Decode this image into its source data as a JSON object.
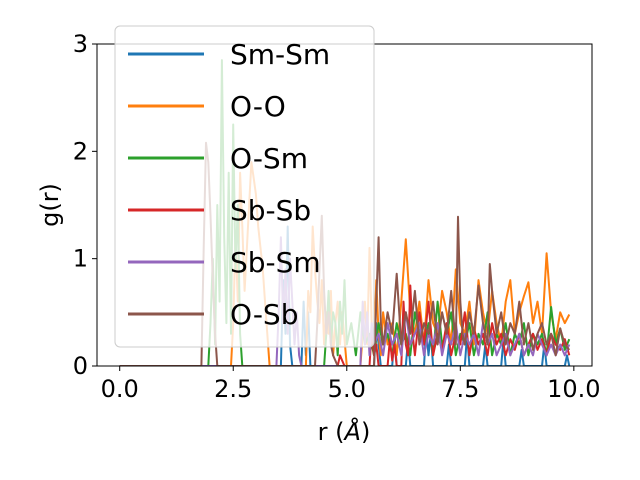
{
  "chart_data": {
    "type": "line",
    "title": "",
    "xlabel_text": "r (",
    "xlabel_unit": "Å",
    "xlabel_close": ")",
    "ylabel": "g(r)",
    "xlim": [
      -0.5,
      10.4
    ],
    "ylim": [
      0,
      3
    ],
    "xticks": [
      0.0,
      2.5,
      5.0,
      7.5,
      10.0
    ],
    "xtick_labels": [
      "0.0",
      "2.5",
      "5.0",
      "7.5",
      "10.0"
    ],
    "yticks": [
      0,
      1,
      2,
      3
    ],
    "ytick_labels": [
      "0",
      "1",
      "2",
      "3"
    ],
    "grid": false,
    "legend_position": "upper-left",
    "series": [
      {
        "name": "Sm-Sm",
        "color": "#1f77b4",
        "x": [
          0.0,
          3.55,
          3.6,
          3.65,
          3.7,
          3.75,
          3.8,
          4.0,
          4.05,
          4.1,
          4.15,
          4.2,
          5.6,
          5.65,
          5.7,
          5.75,
          6.0,
          6.05,
          6.1,
          6.3,
          6.35,
          6.4,
          6.7,
          6.75,
          6.8,
          6.85,
          6.9,
          7.2,
          7.25,
          7.3,
          7.6,
          7.65,
          7.7,
          8.0,
          8.05,
          8.1,
          8.4,
          8.45,
          8.5,
          8.8,
          8.85,
          8.9,
          9.3,
          9.35,
          9.4,
          9.8,
          9.85,
          9.9
        ],
        "y": [
          0.0,
          0.0,
          0.8,
          0.3,
          1.3,
          0.2,
          0.0,
          0.0,
          0.6,
          0.1,
          0.5,
          0.0,
          0.0,
          0.4,
          0.2,
          0.0,
          0.0,
          0.3,
          0.0,
          0.0,
          0.25,
          0.0,
          0.0,
          0.35,
          0.1,
          0.3,
          0.0,
          0.0,
          0.2,
          0.0,
          0.0,
          0.3,
          0.0,
          0.0,
          0.2,
          0.0,
          0.0,
          0.25,
          0.0,
          0.0,
          0.15,
          0.0,
          0.0,
          0.2,
          0.0,
          0.0,
          0.1,
          0.0
        ]
      },
      {
        "name": "O-O",
        "color": "#ff7f0e",
        "x": [
          0.0,
          2.45,
          2.5,
          2.55,
          2.6,
          2.65,
          2.7,
          2.75,
          2.8,
          2.85,
          2.9,
          2.95,
          3.0,
          3.05,
          3.1,
          3.15,
          3.2,
          3.25,
          3.3,
          4.1,
          4.15,
          4.2,
          4.25,
          4.3,
          4.35,
          4.4,
          4.45,
          4.5,
          4.55,
          4.6,
          4.65,
          4.7,
          4.75,
          4.8,
          4.85,
          4.9,
          5.0,
          5.3,
          5.35,
          5.4,
          5.45,
          5.5,
          5.55,
          5.6,
          5.65,
          5.7,
          5.75,
          5.8,
          5.9,
          6.0,
          6.1,
          6.2,
          6.3,
          6.4,
          6.5,
          6.6,
          6.7,
          6.8,
          6.9,
          7.0,
          7.1,
          7.2,
          7.3,
          7.4,
          7.5,
          7.6,
          7.7,
          7.8,
          7.9,
          8.0,
          8.1,
          8.2,
          8.3,
          8.4,
          8.5,
          8.6,
          8.7,
          8.8,
          8.9,
          9.0,
          9.1,
          9.2,
          9.3,
          9.4,
          9.5,
          9.6,
          9.7,
          9.8,
          9.9
        ],
        "y": [
          0.0,
          0.0,
          0.4,
          1.2,
          0.6,
          1.8,
          1.3,
          0.7,
          1.1,
          1.5,
          1.9,
          1.75,
          1.6,
          1.3,
          1.1,
          0.9,
          0.6,
          0.3,
          0.0,
          0.0,
          0.7,
          0.5,
          1.3,
          0.9,
          0.6,
          0.4,
          0.8,
          0.2,
          0.5,
          0.3,
          0.7,
          0.1,
          0.4,
          0.6,
          0.2,
          0.5,
          0.0,
          0.0,
          0.3,
          0.6,
          0.2,
          1.1,
          0.4,
          0.2,
          0.8,
          0.3,
          0.1,
          0.5,
          0.2,
          0.4,
          0.1,
          0.6,
          1.18,
          0.5,
          0.3,
          0.6,
          0.2,
          0.8,
          0.4,
          0.3,
          0.7,
          0.5,
          0.2,
          0.9,
          0.4,
          0.3,
          0.6,
          0.2,
          0.8,
          0.5,
          0.3,
          0.7,
          0.4,
          0.2,
          0.6,
          0.8,
          0.3,
          0.5,
          0.65,
          0.78,
          0.4,
          0.6,
          0.3,
          1.05,
          0.5,
          0.25,
          0.5,
          0.4,
          0.48
        ]
      },
      {
        "name": "O-Sm",
        "color": "#2ca02c",
        "x": [
          0.0,
          1.95,
          2.0,
          2.05,
          2.1,
          2.15,
          2.2,
          2.25,
          2.3,
          2.35,
          2.4,
          2.45,
          2.5,
          2.55,
          2.6,
          2.65,
          2.7,
          4.5,
          4.55,
          4.6,
          4.65,
          4.7,
          4.75,
          4.8,
          4.85,
          4.9,
          4.95,
          5.0,
          5.1,
          5.2,
          5.3,
          5.4,
          5.5,
          5.6,
          5.7,
          5.8,
          5.9,
          6.0,
          6.1,
          6.2,
          6.3,
          6.4,
          6.5,
          6.6,
          6.7,
          6.8,
          6.9,
          7.0,
          7.1,
          7.2,
          7.3,
          7.4,
          7.5,
          7.6,
          7.7,
          7.8,
          7.9,
          8.0,
          8.1,
          8.2,
          8.3,
          8.4,
          8.5,
          8.6,
          8.7,
          8.8,
          8.9,
          9.0,
          9.1,
          9.2,
          9.3,
          9.4,
          9.5,
          9.6,
          9.7,
          9.8,
          9.9
        ],
        "y": [
          0.0,
          0.0,
          0.4,
          1.0,
          0.2,
          1.5,
          0.6,
          2.85,
          1.2,
          0.4,
          1.8,
          0.3,
          2.25,
          0.9,
          1.5,
          0.3,
          0.0,
          0.0,
          0.3,
          0.7,
          0.2,
          0.5,
          0.4,
          0.1,
          0.6,
          0.3,
          0.8,
          0.2,
          0.4,
          0.1,
          0.5,
          0.2,
          0.3,
          0.1,
          0.4,
          0.2,
          0.3,
          0.1,
          0.4,
          0.2,
          0.3,
          0.1,
          0.5,
          0.3,
          0.2,
          0.4,
          0.1,
          0.6,
          0.2,
          0.3,
          0.5,
          0.1,
          0.3,
          0.2,
          0.4,
          0.1,
          0.3,
          0.2,
          0.5,
          0.1,
          0.3,
          0.2,
          0.4,
          0.1,
          0.3,
          0.2,
          0.4,
          0.1,
          0.3,
          0.2,
          0.3,
          0.1,
          0.55,
          0.2,
          0.35,
          0.15,
          0.25
        ]
      },
      {
        "name": "Sb-Sb",
        "color": "#d62728",
        "x": [
          0.0,
          4.8,
          4.85,
          4.9,
          4.95,
          5.5,
          5.55,
          5.6,
          5.65,
          5.7,
          5.9,
          5.95,
          6.0,
          6.05,
          6.1,
          6.2,
          6.25,
          6.3,
          6.35,
          6.4,
          6.45,
          6.5,
          6.6,
          6.7,
          6.8,
          6.9,
          7.0,
          7.1,
          7.2,
          7.3,
          7.4,
          7.5,
          7.6,
          7.7,
          7.8,
          7.9,
          8.0,
          8.1,
          8.2,
          8.3,
          8.4,
          8.5,
          8.6,
          8.7,
          8.8,
          8.9,
          9.0,
          9.1,
          9.2,
          9.3,
          9.4,
          9.5,
          9.6,
          9.7,
          9.8,
          9.9
        ],
        "y": [
          0.0,
          0.0,
          0.1,
          0.05,
          0.0,
          0.0,
          0.35,
          0.1,
          0.2,
          0.0,
          0.0,
          0.25,
          0.05,
          0.2,
          0.0,
          0.0,
          0.6,
          0.2,
          0.1,
          0.75,
          0.3,
          0.1,
          0.5,
          0.2,
          0.6,
          0.1,
          0.3,
          0.15,
          0.4,
          0.1,
          0.3,
          0.2,
          0.5,
          0.1,
          0.35,
          0.2,
          0.3,
          0.1,
          0.4,
          0.2,
          0.3,
          0.1,
          0.25,
          0.15,
          0.3,
          0.1,
          0.2,
          0.3,
          0.15,
          0.25,
          0.1,
          0.3,
          0.2,
          0.15,
          0.25,
          0.1
        ]
      },
      {
        "name": "Sb-Sm",
        "color": "#9467bd",
        "x": [
          0.0,
          3.45,
          3.5,
          3.55,
          3.6,
          3.65,
          3.7,
          3.75,
          3.8,
          3.85,
          3.9,
          3.95,
          4.0,
          5.3,
          5.35,
          5.4,
          5.45,
          5.5,
          5.55,
          5.6,
          5.7,
          5.8,
          5.9,
          6.0,
          6.1,
          6.2,
          6.3,
          6.4,
          6.5,
          6.6,
          6.7,
          6.8,
          6.9,
          7.0,
          7.1,
          7.2,
          7.3,
          7.4,
          7.5,
          7.6,
          7.7,
          7.8,
          7.9,
          8.0,
          8.1,
          8.2,
          8.3,
          8.4,
          8.5,
          8.6,
          8.7,
          8.8,
          8.9,
          9.0,
          9.1,
          9.2,
          9.3,
          9.4,
          9.5,
          9.6,
          9.7,
          9.8,
          9.9
        ],
        "y": [
          0.0,
          0.0,
          0.5,
          1.2,
          0.4,
          0.9,
          0.3,
          1.0,
          0.6,
          0.2,
          0.5,
          0.1,
          0.0,
          0.0,
          0.6,
          0.2,
          0.5,
          0.1,
          0.4,
          0.2,
          0.3,
          0.1,
          0.4,
          0.2,
          0.3,
          0.1,
          0.5,
          0.2,
          0.3,
          0.4,
          0.1,
          0.3,
          0.2,
          0.4,
          0.1,
          0.3,
          0.2,
          0.4,
          0.1,
          0.3,
          0.2,
          0.3,
          0.1,
          0.4,
          0.2,
          0.3,
          0.1,
          0.2,
          0.3,
          0.1,
          0.2,
          0.3,
          0.1,
          0.2,
          0.1,
          0.3,
          0.2,
          0.1,
          0.2,
          0.1,
          0.2,
          0.1,
          0.2
        ]
      },
      {
        "name": "O-Sb",
        "color": "#8c564b",
        "x": [
          0.0,
          1.8,
          1.85,
          1.9,
          1.95,
          2.0,
          2.05,
          2.1,
          2.15,
          4.3,
          4.35,
          4.4,
          4.45,
          4.5,
          4.55,
          4.6,
          4.65,
          4.7,
          4.8,
          5.6,
          5.65,
          5.7,
          5.75,
          5.8,
          5.9,
          6.0,
          6.1,
          6.2,
          6.3,
          6.4,
          6.5,
          6.6,
          6.7,
          6.8,
          6.9,
          7.0,
          7.1,
          7.2,
          7.3,
          7.4,
          7.45,
          7.5,
          7.55,
          7.6,
          7.7,
          7.8,
          7.9,
          8.0,
          8.1,
          8.15,
          8.2,
          8.3,
          8.4,
          8.5,
          8.6,
          8.7,
          8.8,
          8.9,
          9.0,
          9.1,
          9.2,
          9.3,
          9.4,
          9.5,
          9.6,
          9.7,
          9.8,
          9.9
        ],
        "y": [
          0.0,
          0.0,
          1.1,
          2.08,
          1.9,
          1.4,
          0.8,
          0.3,
          0.0,
          0.0,
          0.4,
          0.9,
          1.4,
          0.7,
          0.3,
          0.5,
          0.2,
          0.1,
          0.0,
          0.0,
          0.6,
          1.2,
          0.4,
          0.2,
          0.5,
          0.3,
          0.86,
          0.2,
          0.5,
          0.3,
          0.7,
          0.2,
          0.4,
          0.3,
          0.6,
          0.2,
          0.5,
          0.3,
          0.7,
          0.2,
          1.39,
          0.6,
          0.3,
          0.2,
          0.5,
          0.3,
          0.75,
          0.4,
          0.2,
          0.95,
          0.7,
          0.3,
          0.5,
          0.2,
          0.4,
          0.3,
          0.6,
          0.2,
          0.4,
          0.15,
          0.3,
          0.4,
          0.2,
          0.3,
          0.1,
          0.35,
          0.2,
          0.15
        ]
      }
    ]
  }
}
